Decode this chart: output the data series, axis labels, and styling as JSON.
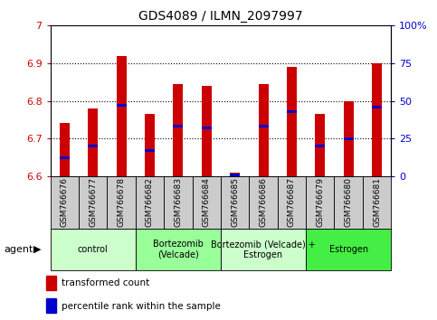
{
  "title": "GDS4089 / ILMN_2097997",
  "samples": [
    "GSM766676",
    "GSM766677",
    "GSM766678",
    "GSM766682",
    "GSM766683",
    "GSM766684",
    "GSM766685",
    "GSM766686",
    "GSM766687",
    "GSM766679",
    "GSM766680",
    "GSM766681"
  ],
  "transformed_count": [
    6.74,
    6.78,
    6.92,
    6.765,
    6.845,
    6.84,
    6.61,
    6.845,
    6.89,
    6.765,
    6.8,
    6.9
  ],
  "percentile_rank": [
    12,
    20,
    47,
    17,
    33,
    32,
    1,
    33,
    43,
    20,
    25,
    46
  ],
  "bar_color": "#cc0000",
  "percentile_color": "#0000cc",
  "ymin": 6.6,
  "ymax": 7.0,
  "yticks_left": [
    6.6,
    6.7,
    6.8,
    6.9,
    7.0
  ],
  "ytick_labels_left": [
    "6.6",
    "6.7",
    "6.8",
    "6.9",
    "7"
  ],
  "right_ytick_vals": [
    0,
    25,
    50,
    75,
    100
  ],
  "right_ytick_labels": [
    "0",
    "25",
    "50",
    "75",
    "100%"
  ],
  "groups": [
    {
      "label": "control",
      "start": 0,
      "end": 3,
      "color": "#ccffcc"
    },
    {
      "label": "Bortezomib\n(Velcade)",
      "start": 3,
      "end": 6,
      "color": "#99ff99"
    },
    {
      "label": "Bortezomib (Velcade) +\nEstrogen",
      "start": 6,
      "end": 9,
      "color": "#ccffcc"
    },
    {
      "label": "Estrogen",
      "start": 9,
      "end": 12,
      "color": "#44ee44"
    }
  ],
  "bar_color_hex": "#cc0000",
  "percentile_color_hex": "#0000cc",
  "tick_label_color_left": "#cc0000",
  "tick_label_color_right": "#0000cc",
  "plot_bg": "#ffffff",
  "tickbox_bg": "#cccccc",
  "bar_width": 0.35
}
